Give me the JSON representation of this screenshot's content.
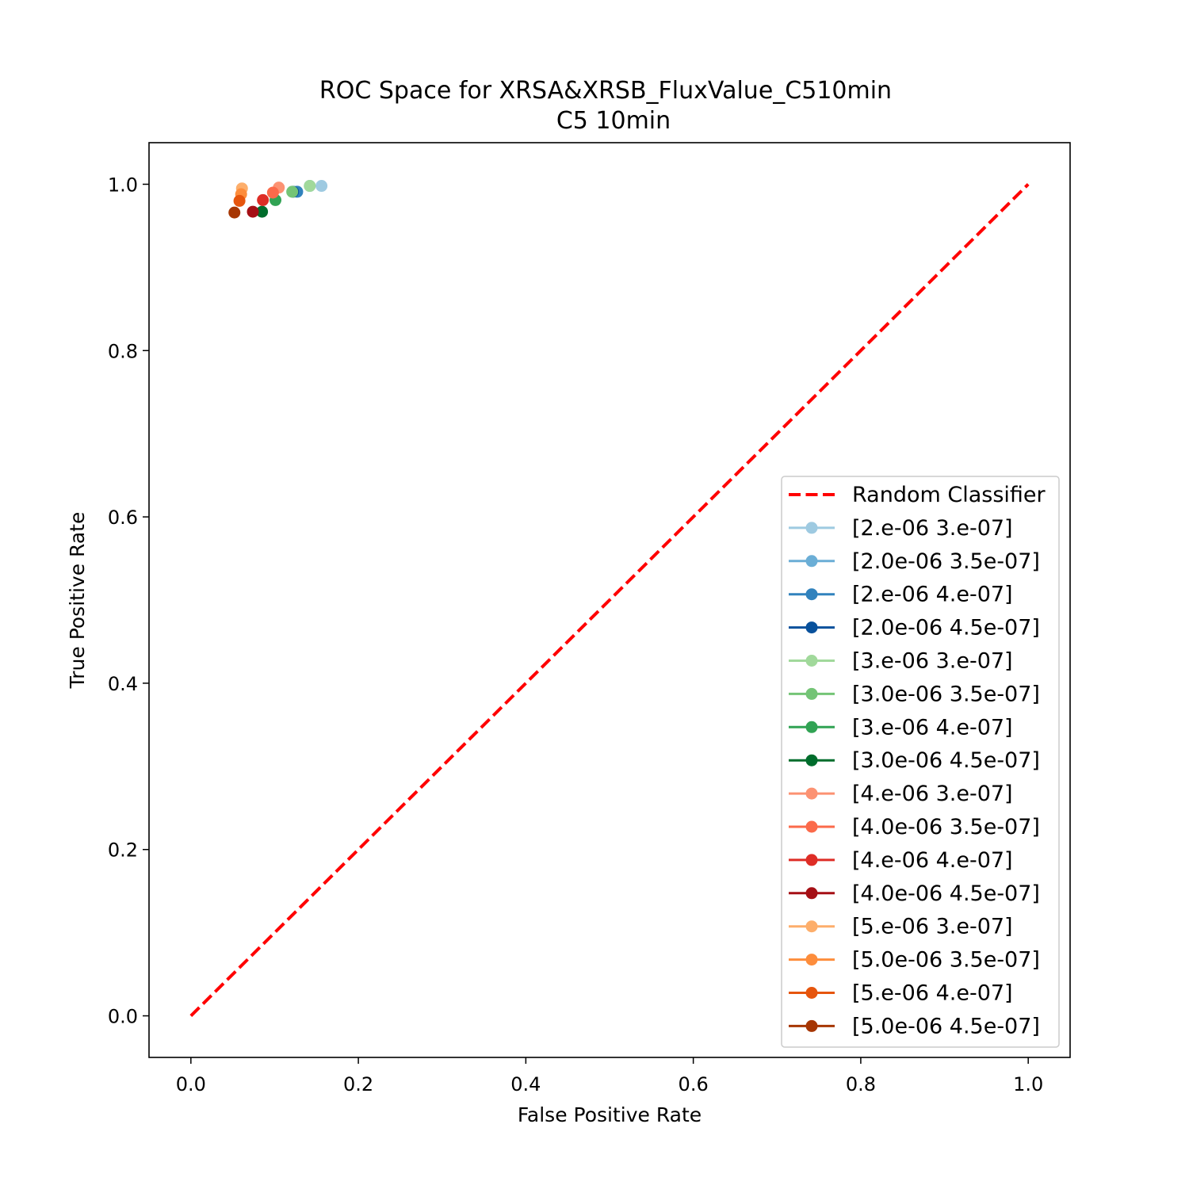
{
  "chart_data": {
    "type": "scatter",
    "title": "ROC Space for XRSA&XRSB_FluxValue_C510min",
    "subtitle": "C5 10min",
    "xlabel": "False Positive Rate",
    "ylabel": "True Positive Rate",
    "xlim": [
      -0.05,
      1.05
    ],
    "ylim": [
      -0.05,
      1.05
    ],
    "x_ticks": [
      "0.0",
      "0.2",
      "0.4",
      "0.6",
      "0.8",
      "1.0"
    ],
    "y_ticks": [
      "0.0",
      "0.2",
      "0.4",
      "0.6",
      "0.8",
      "1.0"
    ],
    "grid": false,
    "legend_position": "lower-right",
    "reference_line": {
      "name": "Random Classifier",
      "x": [
        0,
        1
      ],
      "y": [
        0,
        1
      ],
      "color": "#ff0000",
      "style": "dashed"
    },
    "series": [
      {
        "name": "[2.e-06 3.e-07]",
        "color": "#9ecae1",
        "x": [
          0.156
        ],
        "y": [
          0.998
        ]
      },
      {
        "name": "[2.0e-06 3.5e-07]",
        "color": "#6baed6",
        "x": [
          0.142
        ],
        "y": [
          0.998
        ]
      },
      {
        "name": "[2.e-06 4.e-07]",
        "color": "#3182bd",
        "x": [
          0.127
        ],
        "y": [
          0.991
        ]
      },
      {
        "name": "[2.0e-06 4.5e-07]",
        "color": "#08519c",
        "x": [
          0.122
        ],
        "y": [
          0.991
        ]
      },
      {
        "name": "[3.e-06 3.e-07]",
        "color": "#a1d99b",
        "x": [
          0.142
        ],
        "y": [
          0.998
        ]
      },
      {
        "name": "[3.0e-06 3.5e-07]",
        "color": "#74c476",
        "x": [
          0.121
        ],
        "y": [
          0.991
        ]
      },
      {
        "name": "[3.e-06 4.e-07]",
        "color": "#31a354",
        "x": [
          0.101
        ],
        "y": [
          0.981
        ]
      },
      {
        "name": "[3.0e-06 4.5e-07]",
        "color": "#006d2c",
        "x": [
          0.085
        ],
        "y": [
          0.967
        ]
      },
      {
        "name": "[4.e-06 3.e-07]",
        "color": "#fc9272",
        "x": [
          0.105
        ],
        "y": [
          0.996
        ]
      },
      {
        "name": "[4.0e-06 3.5e-07]",
        "color": "#fb6a4a",
        "x": [
          0.098
        ],
        "y": [
          0.99
        ]
      },
      {
        "name": "[4.e-06 4.e-07]",
        "color": "#de2d26",
        "x": [
          0.086
        ],
        "y": [
          0.981
        ]
      },
      {
        "name": "[4.0e-06 4.5e-07]",
        "color": "#a50f15",
        "x": [
          0.074
        ],
        "y": [
          0.967
        ]
      },
      {
        "name": "[5.e-06 3.e-07]",
        "color": "#fdae6b",
        "x": [
          0.061
        ],
        "y": [
          0.995
        ]
      },
      {
        "name": "[5.0e-06 3.5e-07]",
        "color": "#fd8d3c",
        "x": [
          0.06
        ],
        "y": [
          0.988
        ]
      },
      {
        "name": "[5.e-06 4.e-07]",
        "color": "#e6550d",
        "x": [
          0.058
        ],
        "y": [
          0.98
        ]
      },
      {
        "name": "[5.0e-06 4.5e-07]",
        "color": "#a63603",
        "x": [
          0.052
        ],
        "y": [
          0.966
        ]
      }
    ]
  }
}
